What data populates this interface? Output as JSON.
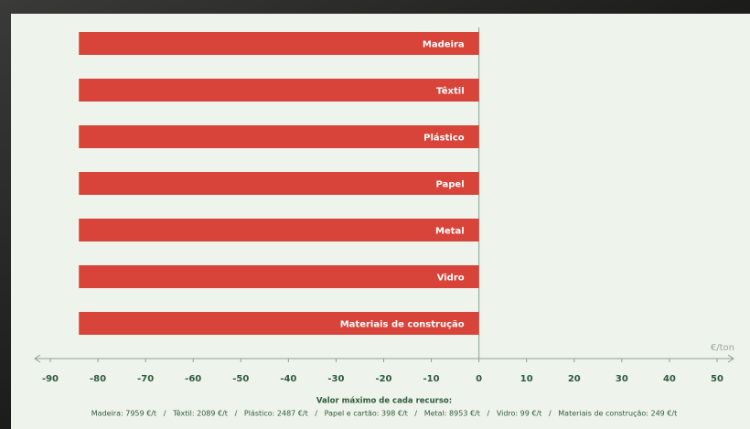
{
  "chart_data": {
    "type": "bar",
    "orientation": "horizontal",
    "categories": [
      "Madeira",
      "Têxtil",
      "Plástico",
      "Papel",
      "Metal",
      "Vidro",
      "Materiais de construção"
    ],
    "values": [
      -84,
      -84,
      -84,
      -84,
      -84,
      -84,
      -84
    ],
    "color": "#d8443a",
    "xlim": [
      -90,
      50
    ],
    "xticks": [
      -90,
      -80,
      -70,
      -60,
      -50,
      -40,
      -30,
      -20,
      -10,
      0,
      10,
      20,
      30,
      40,
      50
    ],
    "x_label": "€/ton",
    "note_title": "Valor máximo de cada recurso:",
    "note": "Madeira: 7959 €/t   /   Têxtil: 2089 €/t   /   Plástico: 2487 €/t   /   Papel e cartão: 398 €/t   /   Metal: 8953 €/t   /   Vidro: 99 €/t   /   Materiais de construção: 249 €/t"
  }
}
